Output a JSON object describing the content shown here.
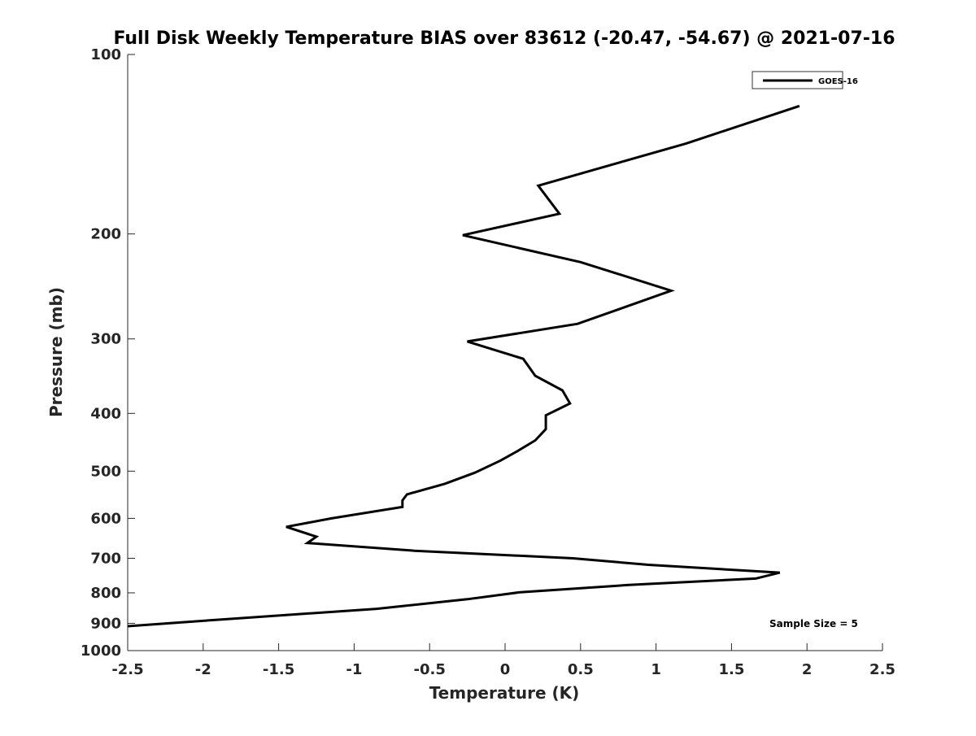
{
  "chart_data": {
    "type": "line",
    "title": "Full Disk Weekly Temperature BIAS over 83612 (-20.47, -54.67) @ 2021-07-16",
    "xlabel": "Temperature (K)",
    "ylabel": "Pressure (mb)",
    "xlim": [
      -2.5,
      2.5
    ],
    "ylim": [
      100,
      1000
    ],
    "y_scale": "log",
    "y_reversed": true,
    "x_ticks": [
      -2.5,
      -2,
      -1.5,
      -1,
      -0.5,
      0,
      0.5,
      1,
      1.5,
      2,
      2.5
    ],
    "x_tick_labels": [
      "-2.5",
      "-2",
      "-1.5",
      "-1",
      "-0.5",
      "0",
      "0.5",
      "1",
      "1.5",
      "2",
      "2.5"
    ],
    "y_ticks": [
      100,
      200,
      300,
      400,
      500,
      600,
      700,
      800,
      900,
      1000
    ],
    "y_tick_labels": [
      "100",
      "200",
      "300",
      "400",
      "500",
      "600",
      "700",
      "800",
      "900",
      "1000"
    ],
    "grid": false,
    "legend_position": "top-right",
    "annotation": "Sample Size = 5",
    "series": [
      {
        "name": "GOES-16",
        "color": "#000000",
        "points": [
          {
            "x": 1.95,
            "y": 122
          },
          {
            "x": 1.2,
            "y": 141
          },
          {
            "x": 0.22,
            "y": 166
          },
          {
            "x": 0.36,
            "y": 185
          },
          {
            "x": -0.28,
            "y": 201
          },
          {
            "x": 0.5,
            "y": 223
          },
          {
            "x": 1.1,
            "y": 249
          },
          {
            "x": 0.8,
            "y": 265
          },
          {
            "x": 0.48,
            "y": 283
          },
          {
            "x": -0.25,
            "y": 303
          },
          {
            "x": 0.12,
            "y": 324
          },
          {
            "x": 0.2,
            "y": 346
          },
          {
            "x": 0.38,
            "y": 366
          },
          {
            "x": 0.43,
            "y": 385
          },
          {
            "x": 0.27,
            "y": 403
          },
          {
            "x": 0.27,
            "y": 425
          },
          {
            "x": 0.2,
            "y": 444
          },
          {
            "x": 0.08,
            "y": 463
          },
          {
            "x": -0.03,
            "y": 480
          },
          {
            "x": -0.2,
            "y": 503
          },
          {
            "x": -0.4,
            "y": 525
          },
          {
            "x": -0.65,
            "y": 547
          },
          {
            "x": -0.68,
            "y": 560
          },
          {
            "x": -0.68,
            "y": 574
          },
          {
            "x": -1.15,
            "y": 600
          },
          {
            "x": -1.45,
            "y": 620
          },
          {
            "x": -1.25,
            "y": 644
          },
          {
            "x": -1.31,
            "y": 660
          },
          {
            "x": -0.6,
            "y": 680
          },
          {
            "x": 0.45,
            "y": 700
          },
          {
            "x": 0.95,
            "y": 718
          },
          {
            "x": 1.82,
            "y": 740
          },
          {
            "x": 1.66,
            "y": 757
          },
          {
            "x": 0.82,
            "y": 776
          },
          {
            "x": 0.1,
            "y": 798
          },
          {
            "x": -0.25,
            "y": 820
          },
          {
            "x": -0.85,
            "y": 851
          },
          {
            "x": -1.8,
            "y": 884
          },
          {
            "x": -2.5,
            "y": 910
          }
        ]
      }
    ]
  }
}
